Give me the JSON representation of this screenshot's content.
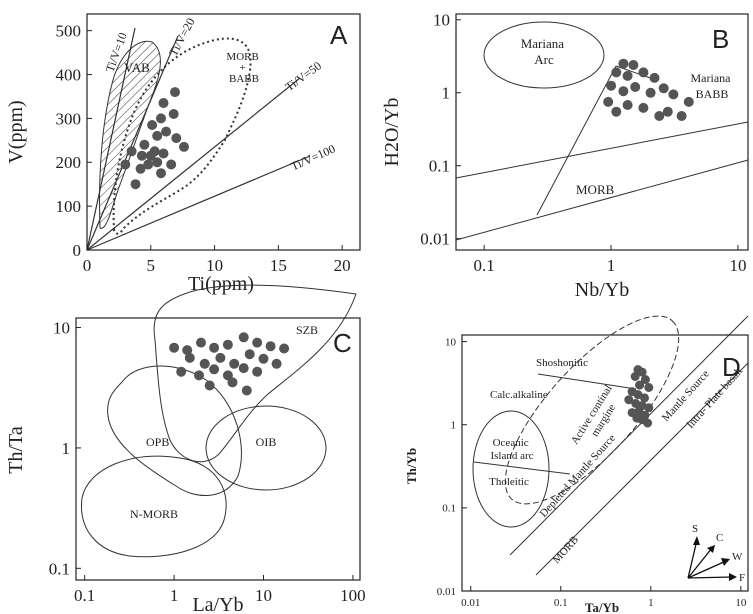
{
  "figure": {
    "panels": [
      {
        "letter": "A"
      },
      {
        "letter": "B"
      },
      {
        "letter": "C"
      },
      {
        "letter": "D"
      }
    ]
  },
  "colors": {
    "axis": "#222222",
    "point": "#555555",
    "line": "#333333",
    "hatch": "#444444"
  },
  "chart_data": [
    {
      "type": "scatter",
      "panel": "A",
      "xlabel": "Ti(ppm)",
      "ylabel": "V(ppm)",
      "xlim": [
        0,
        20
      ],
      "ylim": [
        0,
        500
      ],
      "xticks": [
        "0",
        "5",
        "10",
        "15",
        "20"
      ],
      "yticks": [
        "0",
        "100",
        "200",
        "300",
        "400",
        "500"
      ],
      "reference_lines": [
        {
          "label": "Ti/V=10",
          "x_end": 3.8
        },
        {
          "label": "Ti/V=20",
          "x_end": 7.2
        },
        {
          "label": "Ti/V=50",
          "x_end": 16.5
        },
        {
          "label": "Ti/V=100",
          "x_end": 17.2
        }
      ],
      "fields": [
        {
          "label": "VAB"
        },
        {
          "label": "MORB\n+\nBABB"
        }
      ],
      "points": [
        [
          3.0,
          195
        ],
        [
          3.5,
          225
        ],
        [
          3.8,
          150
        ],
        [
          4.3,
          215
        ],
        [
          4.5,
          240
        ],
        [
          4.8,
          195
        ],
        [
          4.2,
          185
        ],
        [
          5.0,
          215
        ],
        [
          5.5,
          260
        ],
        [
          5.3,
          225
        ],
        [
          5.8,
          300
        ],
        [
          6.0,
          220
        ],
        [
          5.8,
          175
        ],
        [
          6.2,
          270
        ],
        [
          6.6,
          195
        ],
        [
          6.8,
          310
        ],
        [
          7.0,
          255
        ],
        [
          5.1,
          285
        ],
        [
          6.0,
          335
        ],
        [
          6.9,
          360
        ],
        [
          7.6,
          235
        ],
        [
          5.5,
          200
        ]
      ]
    },
    {
      "type": "scatter",
      "panel": "B",
      "xlabel": "Nb/Yb",
      "ylabel": "H2O/Yb",
      "xscale": "log",
      "yscale": "log",
      "xlim": [
        0.06,
        12
      ],
      "ylim": [
        0.007,
        12
      ],
      "xticks": [
        "0.1",
        "1",
        "10"
      ],
      "yticks": [
        "0.01",
        "0.1",
        "1",
        "10"
      ],
      "fields": [
        {
          "label": "Mariana\nArc"
        },
        {
          "label": "Mariana\nBABB"
        },
        {
          "label": "MORB"
        }
      ],
      "points": [
        [
          1.25,
          2.5
        ],
        [
          1.5,
          2.4
        ],
        [
          1.1,
          1.9
        ],
        [
          1.35,
          1.7
        ],
        [
          1.8,
          1.9
        ],
        [
          2.2,
          1.6
        ],
        [
          1.55,
          1.2
        ],
        [
          1.0,
          1.25
        ],
        [
          1.25,
          1.05
        ],
        [
          2.05,
          1.0
        ],
        [
          2.6,
          1.15
        ],
        [
          3.1,
          0.95
        ],
        [
          4.1,
          0.75
        ],
        [
          0.95,
          0.75
        ],
        [
          1.35,
          0.68
        ],
        [
          1.8,
          0.62
        ],
        [
          2.8,
          0.55
        ],
        [
          3.6,
          0.48
        ],
        [
          1.1,
          0.55
        ],
        [
          2.4,
          0.48
        ]
      ]
    },
    {
      "type": "scatter",
      "panel": "C",
      "xlabel": "La/Yb",
      "ylabel": "Th/Ta",
      "xscale": "log",
      "yscale": "log",
      "xlim": [
        0.08,
        120
      ],
      "ylim": [
        0.08,
        12
      ],
      "xticks": [
        "0.1",
        "1",
        "10",
        "100"
      ],
      "yticks": [
        "0.1",
        "1",
        "10"
      ],
      "fields": [
        {
          "label": "SZB"
        },
        {
          "label": "OPB"
        },
        {
          "label": "OIB"
        },
        {
          "label": "N-MORB"
        }
      ],
      "points": [
        [
          1.0,
          6.8
        ],
        [
          1.4,
          6.5
        ],
        [
          2.0,
          7.5
        ],
        [
          2.8,
          6.8
        ],
        [
          4.0,
          7.2
        ],
        [
          6.0,
          8.3
        ],
        [
          8.5,
          7.5
        ],
        [
          12.0,
          7.0
        ],
        [
          17.0,
          6.7
        ],
        [
          1.5,
          5.6
        ],
        [
          2.2,
          5.0
        ],
        [
          3.3,
          5.6
        ],
        [
          4.7,
          5.0
        ],
        [
          7.0,
          6.0
        ],
        [
          10.0,
          5.5
        ],
        [
          14.0,
          5.0
        ],
        [
          1.2,
          4.3
        ],
        [
          1.9,
          4.0
        ],
        [
          2.8,
          4.5
        ],
        [
          4.0,
          4.0
        ],
        [
          6.0,
          4.6
        ],
        [
          8.5,
          4.3
        ],
        [
          2.5,
          3.3
        ],
        [
          4.5,
          3.5
        ],
        [
          6.5,
          3.0
        ]
      ]
    },
    {
      "type": "scatter",
      "panel": "D",
      "xlabel": "Ta/Yb",
      "ylabel": "Th/Yb",
      "xscale": "log",
      "yscale": "log",
      "xlim": [
        0.008,
        12
      ],
      "ylim": [
        0.01,
        12
      ],
      "xticks": [
        "0.01",
        "0.1",
        "1",
        "10"
      ],
      "yticks": [
        "0.01",
        "0.1",
        "1",
        "10"
      ],
      "fields": [
        {
          "label": "Shoshonitic"
        },
        {
          "label": "Calc.alkaline"
        },
        {
          "label": "Active continal\nmargine"
        },
        {
          "label": "Oceanic\nIsland arc"
        },
        {
          "label": "Tholeitic"
        },
        {
          "label": "Depleted Mantle Source"
        },
        {
          "label": "Mantle Source"
        },
        {
          "label": "Intra- Plate basalt"
        },
        {
          "label": "MORB"
        }
      ],
      "vector_labels": [
        "S",
        "C",
        "W",
        "F"
      ],
      "points": [
        [
          0.72,
          4.6
        ],
        [
          0.8,
          4.3
        ],
        [
          0.67,
          3.8
        ],
        [
          0.87,
          3.5
        ],
        [
          0.75,
          3.0
        ],
        [
          0.95,
          2.8
        ],
        [
          0.62,
          2.5
        ],
        [
          0.72,
          2.3
        ],
        [
          0.85,
          2.1
        ],
        [
          0.57,
          2.0
        ],
        [
          0.68,
          1.8
        ],
        [
          0.8,
          1.7
        ],
        [
          0.95,
          1.6
        ],
        [
          0.74,
          1.45
        ],
        [
          0.62,
          1.4
        ],
        [
          0.86,
          1.3
        ],
        [
          0.7,
          1.2
        ],
        [
          0.8,
          1.15
        ],
        [
          0.92,
          1.05
        ]
      ]
    }
  ]
}
